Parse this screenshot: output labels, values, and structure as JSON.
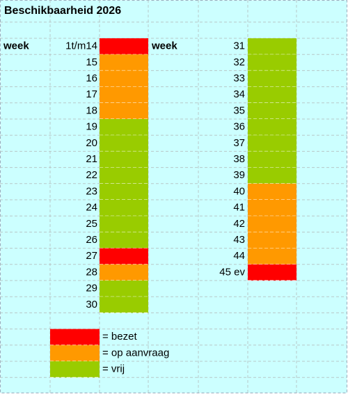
{
  "title": "Beschikbaarheid 2026",
  "columns": [
    {
      "header": "week",
      "rows": [
        {
          "week": "1t/m14",
          "color": "#ff0000"
        },
        {
          "week": 15,
          "color": "#ff9900"
        },
        {
          "week": 16,
          "color": "#ff9900"
        },
        {
          "week": 17,
          "color": "#ff9900"
        },
        {
          "week": 18,
          "color": "#ff9900"
        },
        {
          "week": 19,
          "color": "#99cc00"
        },
        {
          "week": 20,
          "color": "#99cc00"
        },
        {
          "week": 21,
          "color": "#99cc00"
        },
        {
          "week": 22,
          "color": "#99cc00"
        },
        {
          "week": 23,
          "color": "#99cc00"
        },
        {
          "week": 24,
          "color": "#99cc00"
        },
        {
          "week": 25,
          "color": "#99cc00"
        },
        {
          "week": 26,
          "color": "#99cc00"
        },
        {
          "week": 27,
          "color": "#ff0000"
        },
        {
          "week": 28,
          "color": "#ff9900"
        },
        {
          "week": 29,
          "color": "#99cc00"
        },
        {
          "week": 30,
          "color": "#99cc00"
        }
      ]
    },
    {
      "header": "week",
      "rows": [
        {
          "week": 31,
          "color": "#99cc00"
        },
        {
          "week": 32,
          "color": "#99cc00"
        },
        {
          "week": 33,
          "color": "#99cc00"
        },
        {
          "week": 34,
          "color": "#99cc00"
        },
        {
          "week": 35,
          "color": "#99cc00"
        },
        {
          "week": 36,
          "color": "#99cc00"
        },
        {
          "week": 37,
          "color": "#99cc00"
        },
        {
          "week": 38,
          "color": "#99cc00"
        },
        {
          "week": 39,
          "color": "#99cc00"
        },
        {
          "week": 40,
          "color": "#ff9900"
        },
        {
          "week": 41,
          "color": "#ff9900"
        },
        {
          "week": 42,
          "color": "#ff9900"
        },
        {
          "week": 43,
          "color": "#ff9900"
        },
        {
          "week": 44,
          "color": "#ff9900"
        },
        {
          "week": "45 ev",
          "color": "#ff0000"
        }
      ]
    }
  ],
  "legend": [
    {
      "label": "= bezet",
      "color": "#ff0000"
    },
    {
      "label": "= op aanvraag",
      "color": "#ff9900"
    },
    {
      "label": "= vrij",
      "color": "#99cc00"
    }
  ]
}
